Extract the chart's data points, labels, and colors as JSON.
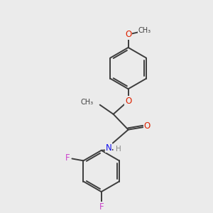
{
  "background_color": "#ebebeb",
  "bond_color": "#3d3d3d",
  "bond_width": 1.4,
  "atom_colors": {
    "O": "#dd2200",
    "N": "#1111ee",
    "F": "#cc44cc",
    "H": "#888888",
    "C": "#3d3d3d"
  },
  "font_size": 8.5,
  "font_size_small": 7.5
}
